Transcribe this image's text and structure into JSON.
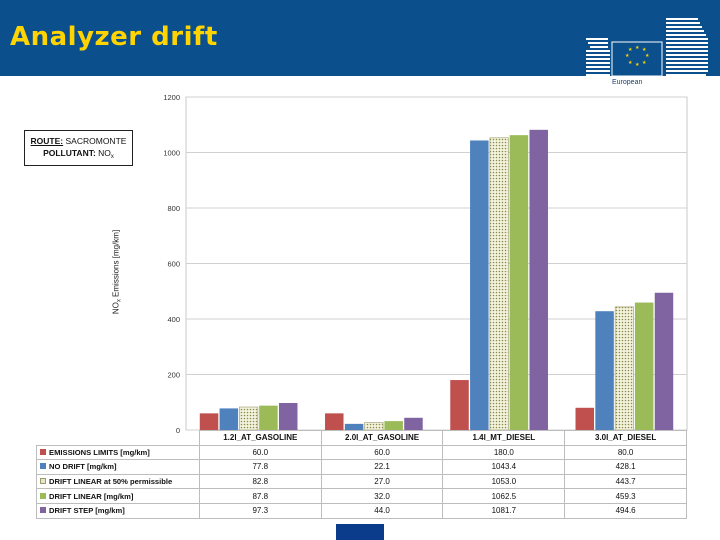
{
  "header": {
    "title": "Analyzer drift",
    "logo_caption": "European",
    "colors": {
      "band": "#0b4f8c",
      "title": "#ffd400"
    }
  },
  "legend_box": {
    "route_label": "ROUTE:",
    "route_value": "SACROMONTE",
    "pollutant_label": "POLLUTANT:",
    "pollutant_value": "NO",
    "pollutant_subscript": "x"
  },
  "chart_data": {
    "type": "bar",
    "ylabel": "NO",
    "ylabel_subscript": "x",
    "ylabel_rest": " Emissions [mg/km]",
    "ylim": [
      0,
      1200
    ],
    "yticks": [
      "0",
      "200",
      "400",
      "600",
      "800",
      "1000",
      "1200"
    ],
    "grid": true,
    "categories": [
      "1.2l_AT_GASOLINE",
      "2.0l_AT_GASOLINE",
      "1.4l_MT_DIESEL",
      "3.0l_AT_DIESEL"
    ],
    "series": [
      {
        "name": "EMISSIONS LIMITS [mg/km]",
        "color": "#c0504d",
        "values": [
          60.0,
          60.0,
          180.0,
          80.0
        ],
        "display": [
          "60.0",
          "60.0",
          "180.0",
          "80.0"
        ]
      },
      {
        "name": "NO DRIFT [mg/km]",
        "color": "#4f81bd",
        "values": [
          77.8,
          22.1,
          1043.4,
          428.1
        ],
        "display": [
          "77.8",
          "22.1",
          "1043.4",
          "428.1"
        ]
      },
      {
        "name": "DRIFT LINEAR at 50% permissible",
        "color": "#e6e6c8",
        "pattern": "dotted",
        "values": [
          82.8,
          27.0,
          1053.0,
          443.7
        ],
        "display": [
          "82.8",
          "27.0",
          "1053.0",
          "443.7"
        ]
      },
      {
        "name": "DRIFT LINEAR [mg/km]",
        "color": "#9bbb59",
        "values": [
          87.8,
          32.0,
          1062.5,
          459.3
        ],
        "display": [
          "87.8",
          "32.0",
          "1062.5",
          "459.3"
        ]
      },
      {
        "name": "DRIFT STEP [mg/km]",
        "color": "#8064a2",
        "values": [
          97.3,
          44.0,
          1081.7,
          494.6
        ],
        "display": [
          "97.3",
          "44.0",
          "1081.7",
          "494.6"
        ]
      }
    ]
  }
}
